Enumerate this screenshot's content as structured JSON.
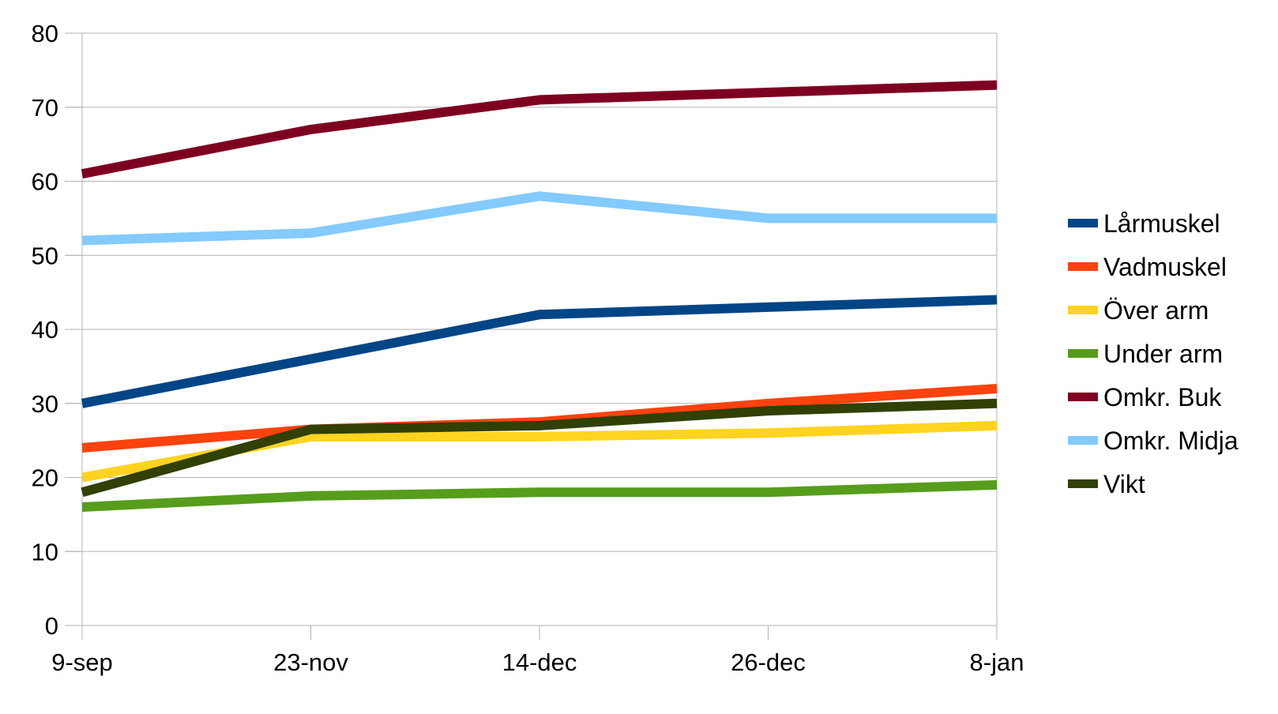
{
  "chart_data": {
    "type": "line",
    "title": "",
    "xlabel": "",
    "ylabel": "",
    "categories": [
      "9-sep",
      "23-nov",
      "14-dec",
      "26-dec",
      "8-jan"
    ],
    "ylim": [
      0,
      80
    ],
    "yticks": [
      0,
      10,
      20,
      30,
      40,
      50,
      60,
      70,
      80
    ],
    "grid": "horizontal",
    "legend_position": "right",
    "series": [
      {
        "name": "Lårmuskel",
        "color": "#004586",
        "values": [
          30,
          36,
          42,
          43,
          44
        ]
      },
      {
        "name": "Vadmuskel",
        "color": "#ff420e",
        "values": [
          24,
          26.5,
          27.5,
          30,
          32
        ]
      },
      {
        "name": "Över arm",
        "color": "#ffd320",
        "values": [
          20,
          25.5,
          25.5,
          26,
          27
        ]
      },
      {
        "name": "Under arm",
        "color": "#579d1c",
        "values": [
          16,
          17.5,
          18,
          18,
          19
        ]
      },
      {
        "name": "Omkr. Buk",
        "color": "#7e0021",
        "values": [
          61,
          67,
          71,
          72,
          73
        ]
      },
      {
        "name": "Omkr. Midja",
        "color": "#83caff",
        "values": [
          52,
          53,
          58,
          55,
          55
        ]
      },
      {
        "name": "Vikt",
        "color": "#314004",
        "values": [
          18,
          26.5,
          27,
          29,
          30
        ]
      }
    ]
  }
}
